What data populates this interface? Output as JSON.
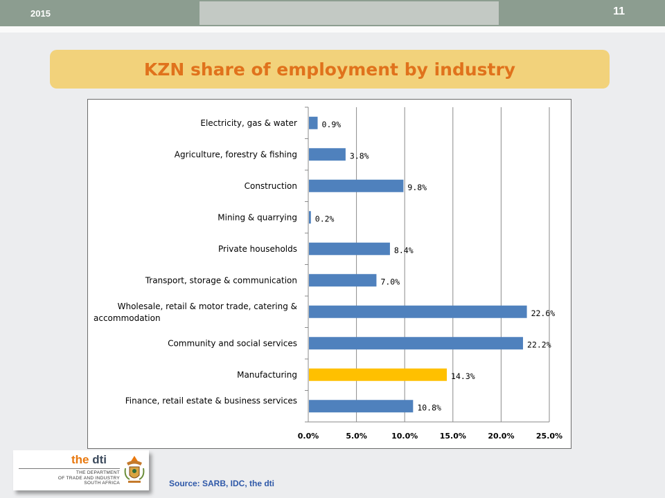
{
  "header": {
    "year": "2015",
    "slide_number": "11"
  },
  "title": "KZN share of employment by industry",
  "source": "Source: SARB, IDC, the dti",
  "logo": {
    "brand_prefix": "the",
    "brand_name": "dti",
    "dept_line1": "THE DEPARTMENT",
    "dept_line2": "OF TRADE AND INDUSTRY",
    "dept_line3": "SOUTH AFRICA"
  },
  "colors": {
    "bar": "#4f81bd",
    "highlight": "#ffc000",
    "title": "#e0721c",
    "source": "#2e58a8"
  },
  "chart_data": {
    "type": "bar",
    "orientation": "horizontal",
    "categories": [
      "Electricity, gas & water",
      "Agriculture, forestry & fishing",
      "Construction",
      "Mining & quarrying",
      "Private households",
      "Transport, storage & communication",
      "Wholesale, retail & motor trade, catering & accommodation",
      "Community and social services",
      "Manufacturing",
      "Finance, retail estate & business services"
    ],
    "values": [
      0.9,
      3.8,
      9.8,
      0.2,
      8.4,
      7.0,
      22.6,
      22.2,
      14.3,
      10.8
    ],
    "value_labels": [
      "0.9%",
      "3.8%",
      "9.8%",
      "0.2%",
      "8.4%",
      "7.0%",
      "22.6%",
      "22.2%",
      "14.3%",
      "10.8%"
    ],
    "highlight_category": "Manufacturing",
    "xlim": [
      0,
      25
    ],
    "xticks": [
      0,
      5,
      10,
      15,
      20,
      25
    ],
    "xtick_labels": [
      "0.0%",
      "5.0%",
      "10.0%",
      "15.0%",
      "20.0%",
      "25.0%"
    ],
    "grid": "vertical",
    "legend": "none"
  }
}
